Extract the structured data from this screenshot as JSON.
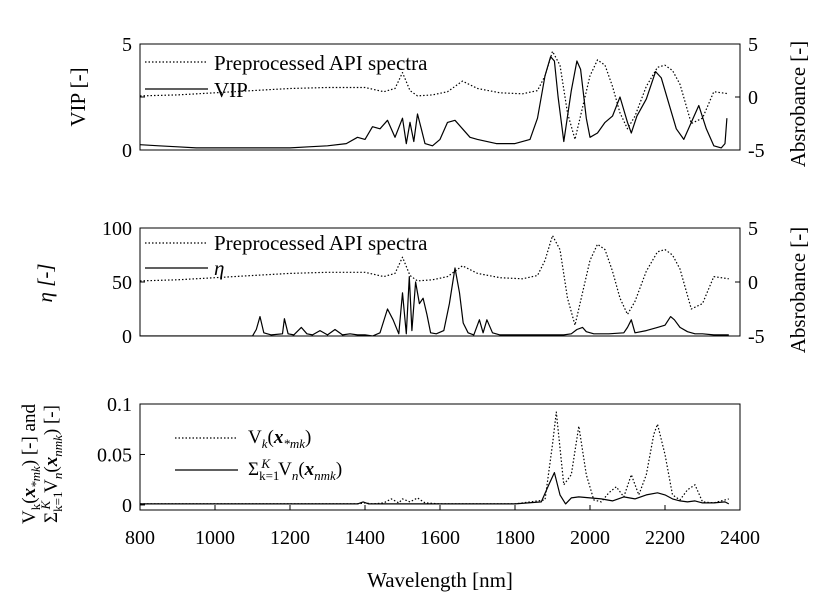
{
  "chart_data": [
    {
      "type": "line",
      "ylabel": "VIP [-]",
      "y2label": "Absrobance [-]",
      "ylim": [
        0,
        5
      ],
      "yticks": [
        0,
        2.5,
        5
      ],
      "ytick_labels": [
        "0",
        "",
        "5"
      ],
      "y2lim": [
        -5,
        5
      ],
      "y2ticks": [
        -5,
        0,
        5
      ],
      "ytick2_labels": [
        "-5",
        "0",
        "5"
      ],
      "xlim": [
        800,
        2400
      ],
      "grid": false,
      "legend_position": "top-left",
      "series": [
        {
          "name": "Preprocessed API spectra",
          "style": "dotted",
          "axis": "right",
          "x": [
            800,
            900,
            1000,
            1100,
            1200,
            1300,
            1400,
            1450,
            1480,
            1500,
            1520,
            1540,
            1580,
            1620,
            1660,
            1700,
            1760,
            1820,
            1860,
            1880,
            1900,
            1920,
            1940,
            1960,
            1980,
            2000,
            2020,
            2040,
            2060,
            2080,
            2100,
            2120,
            2150,
            2180,
            2200,
            2220,
            2240,
            2270,
            2300,
            2330,
            2370
          ],
          "y": [
            0.1,
            0.2,
            0.4,
            0.6,
            0.8,
            0.9,
            0.9,
            0.5,
            0.8,
            2.3,
            0.6,
            0.1,
            0.2,
            0.5,
            1.5,
            0.8,
            0.4,
            0.3,
            0.6,
            2.0,
            4.3,
            3.0,
            -1.5,
            -4.0,
            -1.0,
            2.0,
            3.5,
            3.0,
            1.0,
            -1.5,
            -3.0,
            -1.8,
            1.0,
            2.8,
            3.0,
            2.5,
            1.2,
            -2.5,
            -2.0,
            0.5,
            0.3
          ]
        },
        {
          "name": "VIP",
          "style": "solid",
          "axis": "left",
          "x": [
            800,
            850,
            900,
            950,
            1000,
            1050,
            1100,
            1150,
            1200,
            1250,
            1300,
            1350,
            1380,
            1400,
            1420,
            1440,
            1460,
            1480,
            1500,
            1510,
            1520,
            1530,
            1540,
            1550,
            1560,
            1580,
            1600,
            1620,
            1640,
            1660,
            1680,
            1700,
            1750,
            1800,
            1840,
            1860,
            1880,
            1895,
            1905,
            1915,
            1930,
            1950,
            1965,
            1975,
            1990,
            2000,
            2020,
            2040,
            2060,
            2080,
            2100,
            2110,
            2125,
            2150,
            2175,
            2190,
            2210,
            2230,
            2250,
            2270,
            2290,
            2310,
            2330,
            2350,
            2360,
            2365
          ],
          "y": [
            0.25,
            0.2,
            0.15,
            0.1,
            0.1,
            0.1,
            0.1,
            0.1,
            0.1,
            0.15,
            0.2,
            0.3,
            0.6,
            0.5,
            1.1,
            1.0,
            1.4,
            0.6,
            1.5,
            0.3,
            1.3,
            0.4,
            1.7,
            1.0,
            0.3,
            0.2,
            0.5,
            1.3,
            1.4,
            1.0,
            0.6,
            0.5,
            0.3,
            0.3,
            0.5,
            1.5,
            3.5,
            4.4,
            4.2,
            2.5,
            0.4,
            2.8,
            4.2,
            3.8,
            1.5,
            0.6,
            0.8,
            1.3,
            1.6,
            2.5,
            1.3,
            0.8,
            1.6,
            2.4,
            3.7,
            3.4,
            2.2,
            1.0,
            0.5,
            1.3,
            2.1,
            1.0,
            0.2,
            0.1,
            0.3,
            1.5
          ]
        }
      ]
    },
    {
      "type": "line",
      "ylabel": "η [-]",
      "y2label": "Absrobance [-]",
      "ylim": [
        0,
        100
      ],
      "yticks": [
        0,
        50,
        100
      ],
      "ytick_labels": [
        "0",
        "50",
        "100"
      ],
      "y2lim": [
        -5,
        5
      ],
      "y2ticks": [
        -5,
        0,
        5
      ],
      "ytick2_labels": [
        "-5",
        "0",
        "5"
      ],
      "xlim": [
        800,
        2400
      ],
      "grid": false,
      "legend_position": "top-left",
      "series": [
        {
          "name": "Preprocessed API spectra",
          "style": "dotted",
          "axis": "right",
          "x": [
            800,
            900,
            1000,
            1100,
            1200,
            1300,
            1400,
            1450,
            1480,
            1500,
            1520,
            1540,
            1580,
            1620,
            1660,
            1700,
            1760,
            1820,
            1860,
            1880,
            1900,
            1920,
            1940,
            1960,
            1980,
            2000,
            2020,
            2040,
            2060,
            2080,
            2100,
            2120,
            2150,
            2180,
            2200,
            2220,
            2240,
            2270,
            2300,
            2330,
            2370
          ],
          "y": [
            0.1,
            0.2,
            0.4,
            0.6,
            0.8,
            0.9,
            0.9,
            0.5,
            0.8,
            2.3,
            0.6,
            0.1,
            0.2,
            0.5,
            1.5,
            0.8,
            0.4,
            0.3,
            0.6,
            2.0,
            4.3,
            3.0,
            -1.5,
            -4.0,
            -1.0,
            2.0,
            3.5,
            3.0,
            1.0,
            -1.5,
            -3.0,
            -1.8,
            1.0,
            2.8,
            3.0,
            2.5,
            1.2,
            -2.5,
            -2.0,
            0.5,
            0.3
          ]
        },
        {
          "name": "η",
          "style": "solid",
          "axis": "left",
          "x": [
            800,
            900,
            1000,
            1100,
            1110,
            1120,
            1130,
            1150,
            1180,
            1185,
            1195,
            1210,
            1230,
            1245,
            1260,
            1280,
            1300,
            1320,
            1340,
            1360,
            1380,
            1400,
            1420,
            1440,
            1460,
            1475,
            1490,
            1500,
            1510,
            1518,
            1525,
            1535,
            1545,
            1555,
            1565,
            1575,
            1590,
            1610,
            1625,
            1640,
            1652,
            1662,
            1675,
            1690,
            1705,
            1715,
            1725,
            1740,
            1760,
            1800,
            1850,
            1900,
            1930,
            1950,
            1965,
            1980,
            1990,
            2010,
            2050,
            2090,
            2100,
            2110,
            2120,
            2150,
            2180,
            2200,
            2215,
            2225,
            2240,
            2260,
            2280,
            2300,
            2330,
            2360,
            2370
          ],
          "y": [
            0,
            0,
            0,
            0,
            6,
            18,
            3,
            1,
            2,
            16,
            2,
            1,
            8,
            2,
            1,
            5,
            1,
            6,
            1,
            2,
            1,
            1,
            0,
            3,
            25,
            15,
            2,
            40,
            2,
            55,
            5,
            50,
            30,
            35,
            20,
            3,
            2,
            5,
            30,
            63,
            40,
            12,
            3,
            1,
            15,
            3,
            15,
            3,
            1,
            1,
            1,
            1,
            1,
            2,
            6,
            8,
            4,
            2,
            2,
            3,
            8,
            15,
            3,
            5,
            8,
            10,
            18,
            15,
            8,
            4,
            2,
            2,
            1,
            1,
            1
          ]
        }
      ]
    },
    {
      "type": "line",
      "xlabel": "Wavelength [nm]",
      "ylabel": "V_k(x_*mk) [-] and Σ_{k=1}^{K} V_n(x_nmk) [-]",
      "ylim": [
        -0.005,
        0.1
      ],
      "yticks": [
        0,
        0.05,
        0.1
      ],
      "ytick_labels": [
        "0",
        "0.05",
        "0.1"
      ],
      "xlim": [
        800,
        2400
      ],
      "xticks": [
        800,
        1000,
        1200,
        1400,
        1600,
        1800,
        2000,
        2200,
        2400
      ],
      "xtick_labels": [
        "800",
        "1000",
        "1200",
        "1400",
        "1600",
        "1800",
        "2000",
        "2200",
        "2400"
      ],
      "grid": false,
      "legend_position": "middle-left",
      "series": [
        {
          "name": "V_k(x_*mk)",
          "style": "dotted",
          "x": [
            800,
            1000,
            1200,
            1380,
            1400,
            1420,
            1450,
            1470,
            1490,
            1500,
            1520,
            1540,
            1560,
            1600,
            1700,
            1800,
            1880,
            1900,
            1910,
            1930,
            1950,
            1970,
            1990,
            2010,
            2030,
            2050,
            2070,
            2090,
            2110,
            2130,
            2150,
            2170,
            2180,
            2200,
            2220,
            2240,
            2260,
            2280,
            2300,
            2330,
            2370
          ],
          "y": [
            0.001,
            0.001,
            0.001,
            0.001,
            0.002,
            0.001,
            0.002,
            0.006,
            0.002,
            0.006,
            0.003,
            0.007,
            0.002,
            0.001,
            0.001,
            0.001,
            0.005,
            0.06,
            0.092,
            0.02,
            0.03,
            0.078,
            0.03,
            0.005,
            0.003,
            0.012,
            0.018,
            0.008,
            0.03,
            0.01,
            0.03,
            0.07,
            0.08,
            0.05,
            0.01,
            0.005,
            0.015,
            0.02,
            0.003,
            0.002,
            0.006
          ]
        },
        {
          "name": "Σ_{k=1}^{K} V_n(x_nmk)",
          "style": "solid",
          "x": [
            800,
            1000,
            1200,
            1380,
            1395,
            1410,
            1450,
            1600,
            1800,
            1870,
            1890,
            1905,
            1920,
            1935,
            1950,
            1970,
            2000,
            2030,
            2060,
            2090,
            2120,
            2150,
            2180,
            2200,
            2220,
            2240,
            2260,
            2280,
            2300,
            2330,
            2360,
            2370
          ],
          "y": [
            0.001,
            0.001,
            0.001,
            0.001,
            0.003,
            0.001,
            0.001,
            0.001,
            0.001,
            0.003,
            0.02,
            0.032,
            0.01,
            0.001,
            0.007,
            0.008,
            0.007,
            0.006,
            0.004,
            0.008,
            0.006,
            0.01,
            0.012,
            0.01,
            0.006,
            0.004,
            0.003,
            0.004,
            0.002,
            0.002,
            0.003,
            0.001
          ]
        }
      ]
    }
  ]
}
